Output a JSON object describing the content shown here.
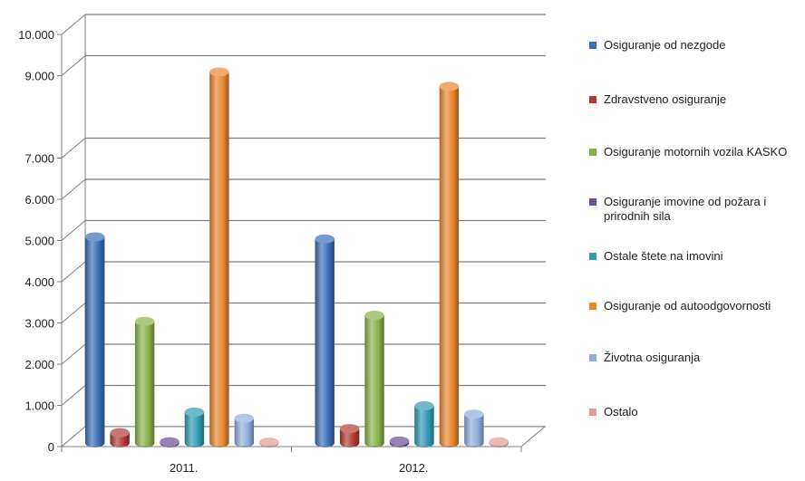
{
  "chart_data": {
    "type": "bar",
    "title": "",
    "xlabel": "",
    "ylabel": "",
    "ylim": [
      0,
      10000
    ],
    "yticks": [
      0,
      1000,
      2000,
      3000,
      4000,
      5000,
      6000,
      7000,
      9000,
      10000
    ],
    "ytick_labels": [
      "0",
      "1.000",
      "2.000",
      "3.000",
      "4.000",
      "5.000",
      "6.000",
      "7.000",
      "9.000",
      "10.000"
    ],
    "categories": [
      "2011.",
      "2012."
    ],
    "grid": true,
    "legend_position": "right",
    "series": [
      {
        "name": "Osiguranje od nezgode",
        "color": "#3A6FB8",
        "values": [
          5000,
          4950
        ]
      },
      {
        "name": "Zdravstveno osiguranje",
        "color": "#B23A36",
        "values": [
          250,
          350
        ]
      },
      {
        "name": "Osiguranje motornih vozila KASKO",
        "color": "#8AB04A",
        "values": [
          2950,
          3100
        ]
      },
      {
        "name": "Osiguranje imovine od požara i prirodnih sila",
        "color": "#6A4E9A",
        "values": [
          30,
          50
        ]
      },
      {
        "name": "Ostale štete na imovini",
        "color": "#2F9BB5",
        "values": [
          750,
          900
        ]
      },
      {
        "name": "Osiguranje od autoodgovornosti",
        "color": "#E8862E",
        "values": [
          9000,
          8650
        ]
      },
      {
        "name": "Životna osiguranja",
        "color": "#8FAFDD",
        "values": [
          600,
          700
        ]
      },
      {
        "name": "Ostalo",
        "color": "#E59A97",
        "values": [
          20,
          30
        ]
      }
    ]
  },
  "legend": {
    "items": [
      {
        "label": "Osiguranje od nezgode",
        "color": "#3A6FB8"
      },
      {
        "label": "Zdravstveno osiguranje",
        "color": "#B23A36"
      },
      {
        "label": "Osiguranje motornih vozila KASKO",
        "color": "#8AB04A"
      },
      {
        "label": "Osiguranje imovine od požara i prirodnih sila",
        "color": "#6A4E9A"
      },
      {
        "label": "Ostale štete na imovini",
        "color": "#2F9BB5"
      },
      {
        "label": "Osiguranje od autoodgovornosti",
        "color": "#E8862E"
      },
      {
        "label": "Životna osiguranja",
        "color": "#8FAFDD"
      },
      {
        "label": "Ostalo",
        "color": "#E59A97"
      }
    ]
  }
}
